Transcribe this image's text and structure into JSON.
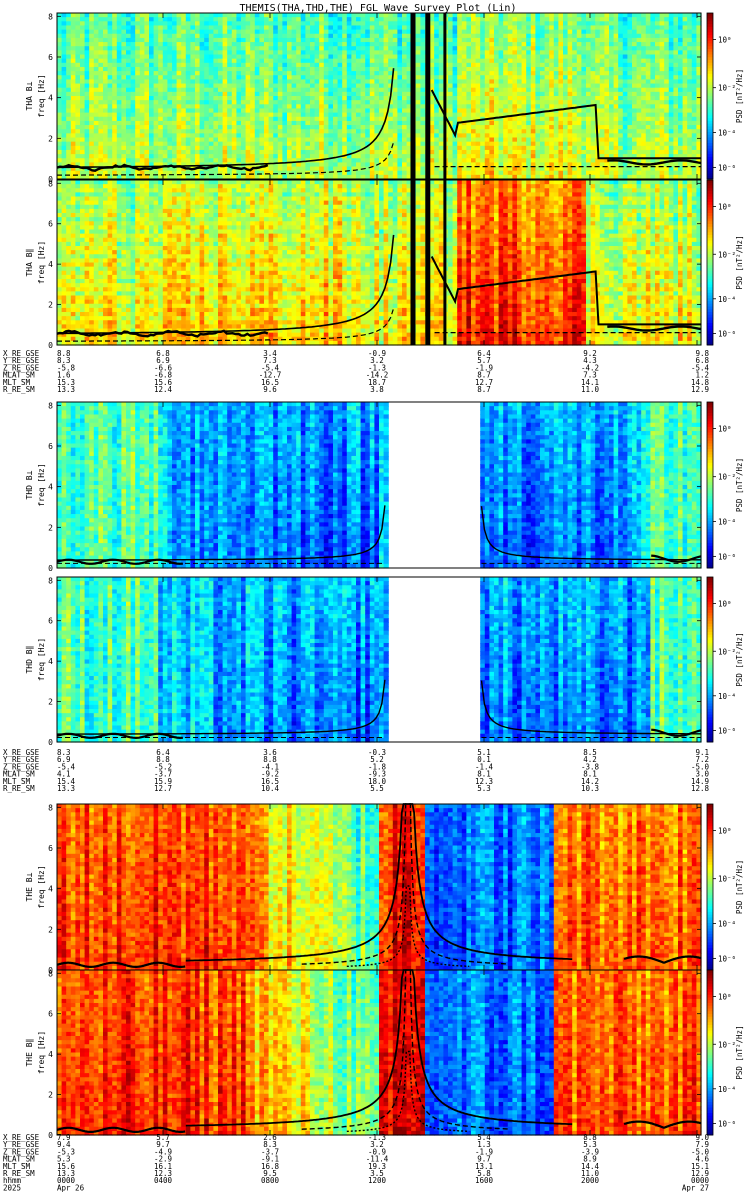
{
  "title": "THEMIS(THA,THD,THE) FGL Wave Survey Plot (Lin)",
  "chart_data": {
    "type": "heatmap",
    "colorbar_label": "PSD [nT²/Hz]",
    "colorbar_ticks": [
      "10⁰",
      "10⁻²",
      "10⁻⁴",
      "10⁻⁶"
    ],
    "freq_label": "freq [Hz]",
    "ylim": [
      0,
      8
    ],
    "yticks": [
      "0",
      "2",
      "4",
      "6",
      "8"
    ],
    "probes": [
      {
        "id": "THA",
        "panels": [
          {
            "ylabel": "THA B⊥",
            "scheme": "tha_perp"
          },
          {
            "ylabel": "THA B∥",
            "scheme": "tha_para"
          }
        ],
        "ephemeris": {
          "labels": [
            "X_RE_GSE",
            "Y_RE_GSE",
            "Z_RE_GSE",
            "MLAT_SM",
            "MLT_SM",
            "R_RE_SM"
          ],
          "values": [
            [
              "8.8",
              "6.8",
              "3.4",
              "-0.9",
              "6.4",
              "9.2",
              "9.8"
            ],
            [
              "8.3",
              "6.9",
              "7.3",
              "3.2",
              "5.7",
              "4.3",
              "6.8"
            ],
            [
              "-5.8",
              "-6.6",
              "-5.4",
              "-1.3",
              "-1.9",
              "-4.2",
              "-5.4"
            ],
            [
              "1.6",
              "-6.8",
              "-12.7",
              "-14.2",
              "8.7",
              "7.3",
              "1.2"
            ],
            [
              "15.3",
              "15.6",
              "16.5",
              "18.7",
              "12.7",
              "14.1",
              "14.8"
            ],
            [
              "13.3",
              "12.4",
              "9.6",
              "3.8",
              "8.7",
              "11.0",
              "12.9"
            ]
          ]
        }
      },
      {
        "id": "THD",
        "panels": [
          {
            "ylabel": "THD B⊥",
            "scheme": "thd"
          },
          {
            "ylabel": "THD B∥",
            "scheme": "thd"
          }
        ],
        "ephemeris": {
          "labels": [
            "X_RE_GSE",
            "Y_RE_GSE",
            "Z_RE_GSE",
            "MLAT_SM",
            "MLT_SM",
            "R_RE_SM"
          ],
          "values": [
            [
              "8.3",
              "6.4",
              "3.6",
              "-0.3",
              "5.1",
              "8.5",
              "9.1"
            ],
            [
              "6.9",
              "8.8",
              "8.8",
              "5.2",
              "0.1",
              "4.2",
              "7.2"
            ],
            [
              "-5.4",
              "-5.2",
              "-4.1",
              "-1.8",
              "-1.4",
              "-3.8",
              "-5.0"
            ],
            [
              "4.1",
              "-3.7",
              "-9.2",
              "-9.3",
              "8.1",
              "8.1",
              "3.0"
            ],
            [
              "15.4",
              "15.9",
              "16.5",
              "18.0",
              "12.3",
              "14.2",
              "14.9"
            ],
            [
              "13.3",
              "12.7",
              "10.4",
              "5.5",
              "5.3",
              "10.3",
              "12.8"
            ]
          ]
        }
      },
      {
        "id": "THE",
        "panels": [
          {
            "ylabel": "THE B⊥",
            "scheme": "the"
          },
          {
            "ylabel": "THE B∥",
            "scheme": "the"
          }
        ],
        "ephemeris": {
          "labels": [
            "X_RE_GSE",
            "Y_RE_GSE",
            "Z_RE_GSE",
            "MLAT_SM",
            "MLT_SM",
            "R_RE_SM",
            "hhmm",
            "2025"
          ],
          "values": [
            [
              "7.9",
              "5.7",
              "2.6",
              "-1.3",
              "5.4",
              "8.8",
              "9.0"
            ],
            [
              "9.4",
              "9.7",
              "8.3",
              "3.2",
              "1.3",
              "5.3",
              "7.9"
            ],
            [
              "-5.3",
              "-4.9",
              "-3.7",
              "-0.9",
              "-1.9",
              "-3.9",
              "-5.0"
            ],
            [
              "5.3",
              "-2.9",
              "-9.1",
              "-11.4",
              "9.7",
              "8.9",
              "4.6"
            ],
            [
              "15.6",
              "16.1",
              "16.8",
              "19.3",
              "13.1",
              "14.4",
              "15.1"
            ],
            [
              "13.3",
              "12.3",
              "9.5",
              "3.5",
              "5.8",
              "11.0",
              "12.9"
            ],
            [
              "0000",
              "0400",
              "0800",
              "1200",
              "1600",
              "2000",
              "0000"
            ],
            [
              "Apr 26",
              "",
              "",
              "",
              "",
              "",
              "Apr 27"
            ]
          ]
        }
      }
    ]
  }
}
